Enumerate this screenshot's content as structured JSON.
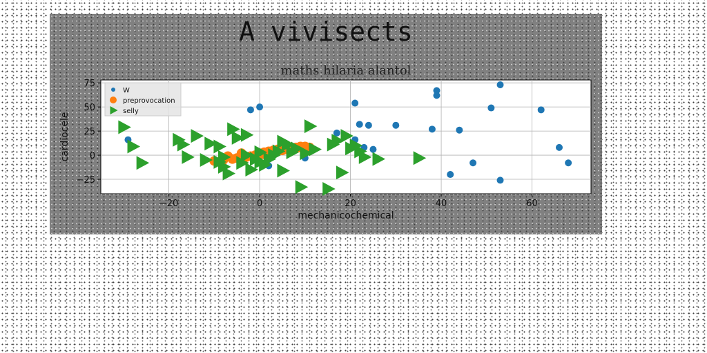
{
  "figure": {
    "suptitle": "A vivisects"
  },
  "chart_data": {
    "type": "scatter",
    "title": "maths hilaria alantol",
    "xlabel": "mechanicochemical",
    "ylabel": "cardiocele",
    "xlim": [
      -35,
      73
    ],
    "ylim": [
      -40,
      78
    ],
    "xticks": [
      -20,
      0,
      20,
      40,
      60
    ],
    "xtick_labels": [
      "−20",
      "0",
      "20",
      "40",
      "60"
    ],
    "yticks": [
      -25,
      0,
      25,
      50,
      75
    ],
    "ytick_labels": [
      "−25",
      "0",
      "25",
      "50",
      "75"
    ],
    "grid": true,
    "legend_position": "top-left",
    "colors": {
      "W": "#1f77b4",
      "preprovocation": "#ff7f0e",
      "selly": "#2ca02c"
    },
    "series": [
      {
        "name": "W",
        "marker": "circle",
        "x": [
          -29,
          -2,
          0,
          2,
          10,
          17,
          21,
          21,
          22,
          23,
          24,
          25,
          30,
          38,
          39,
          39,
          42,
          44,
          47,
          51,
          53,
          53,
          62,
          66,
          68
        ],
        "y": [
          16,
          47,
          50,
          -11,
          -3,
          23,
          54,
          16,
          32,
          8,
          31,
          6,
          31,
          27,
          67,
          62,
          -20,
          26,
          -8,
          49,
          73,
          -26,
          47,
          8,
          -8
        ]
      },
      {
        "name": "preprovocation",
        "marker": "circle",
        "x": [
          -10,
          -8,
          -6,
          -5,
          -4,
          -3,
          -2,
          -1,
          0,
          0,
          1,
          1,
          2,
          2,
          3,
          3,
          4,
          4,
          5,
          5,
          6,
          6,
          7,
          7,
          8,
          8,
          9,
          9,
          10,
          10,
          11,
          -7,
          -4
        ],
        "y": [
          -6,
          -5,
          -4,
          -3,
          -2,
          -2,
          -1,
          0,
          0,
          2,
          1,
          3,
          2,
          4,
          3,
          5,
          4,
          6,
          5,
          7,
          6,
          7,
          7,
          8,
          7,
          8,
          8,
          9,
          8,
          9,
          8,
          -1,
          2
        ]
      },
      {
        "name": "selly",
        "marker": "triangle-right",
        "x": [
          -30,
          -28,
          -26,
          -18,
          -17,
          -16,
          -14,
          -11,
          -9,
          -8,
          -7,
          -6,
          -5,
          -4,
          -3,
          -2,
          -1,
          0,
          0,
          1,
          2,
          3,
          4,
          5,
          5,
          6,
          7,
          8,
          9,
          10,
          11,
          12,
          15,
          16,
          17,
          18,
          19,
          20,
          21,
          22,
          23,
          26,
          35,
          -12,
          -9,
          -8,
          -3
        ],
        "y": [
          29,
          9,
          -8,
          16,
          11,
          -2,
          20,
          12,
          9,
          -12,
          -19,
          27,
          18,
          -8,
          21,
          -15,
          -4,
          3,
          -7,
          -10,
          -4,
          0,
          4,
          14,
          -16,
          11,
          3,
          7,
          -33,
          2,
          30,
          6,
          -35,
          11,
          15,
          -18,
          20,
          7,
          10,
          4,
          -2,
          -4,
          -3,
          -5,
          -7,
          -2,
          0
        ]
      }
    ]
  }
}
